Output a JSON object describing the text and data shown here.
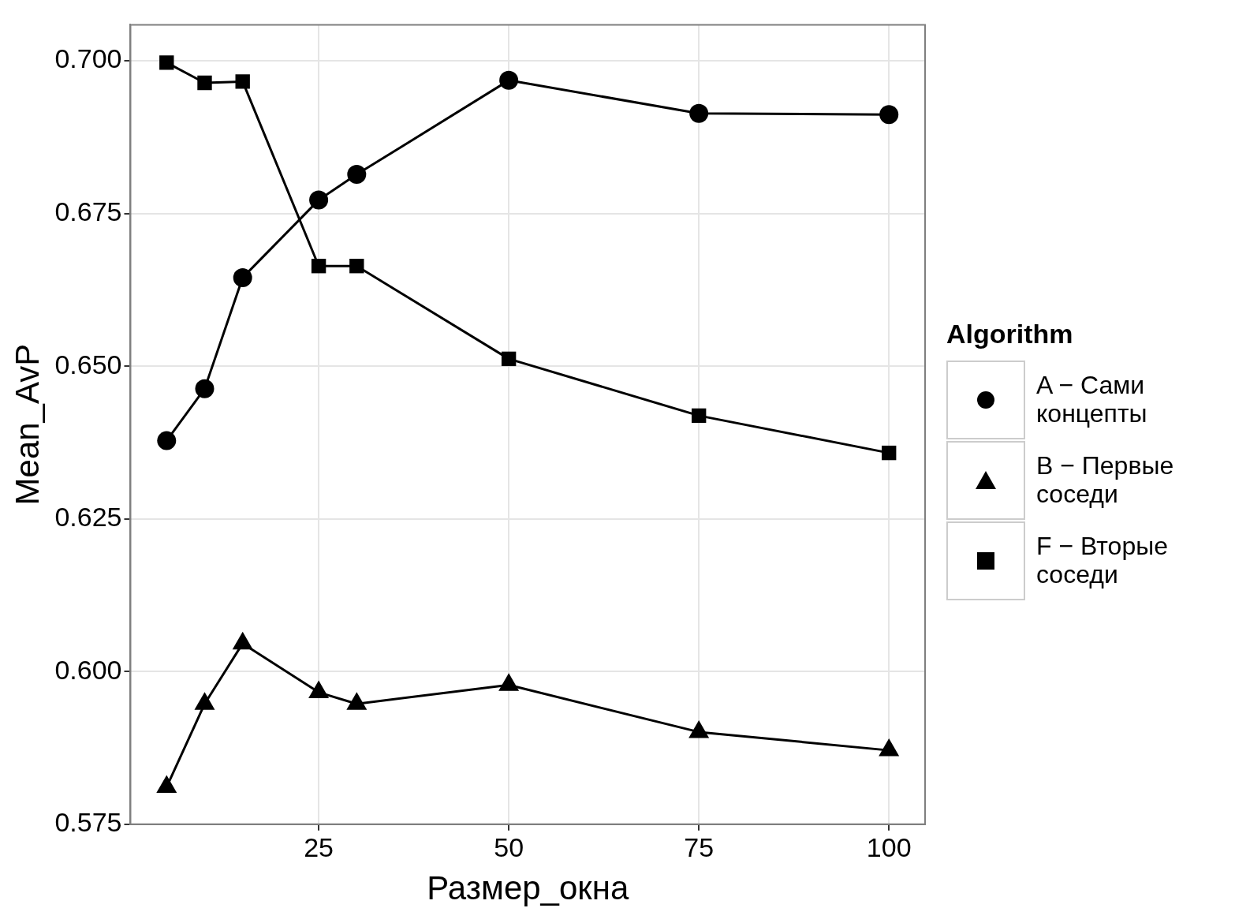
{
  "chart_data": {
    "type": "line",
    "xlabel": "Размер_окна",
    "ylabel": "Mean_AvP",
    "legend_title": "Algorithm",
    "legend": "right",
    "grid": true,
    "line_style": "solid",
    "x": [
      5,
      10,
      15,
      25,
      30,
      50,
      75,
      100
    ],
    "xlim": [
      0.25,
      104.75
    ],
    "xticks": [
      25,
      50,
      75,
      100
    ],
    "ylim": [
      0.575,
      0.7059
    ],
    "yticks": [
      {
        "value": 0.575,
        "label": "0.575"
      },
      {
        "value": 0.6,
        "label": "0.600"
      },
      {
        "value": 0.625,
        "label": "0.625"
      },
      {
        "value": 0.65,
        "label": "0.650"
      },
      {
        "value": 0.675,
        "label": "0.675"
      },
      {
        "value": 0.7,
        "label": "0.700"
      }
    ],
    "series": [
      {
        "name": "A − Сами концепты",
        "color": "#000000",
        "marker": "circle",
        "values": [
          0.6378,
          0.6463,
          0.6645,
          0.6772,
          0.6814,
          0.6968,
          0.6914,
          0.6912
        ]
      },
      {
        "name": "B − Первые соседи",
        "color": "#000000",
        "marker": "triangle",
        "values": [
          0.5811,
          0.5947,
          0.6046,
          0.5966,
          0.5947,
          0.5978,
          0.5901,
          0.5871
        ]
      },
      {
        "name": "F − Вторые соседи",
        "color": "#000000",
        "marker": "square",
        "values": [
          0.6997,
          0.6964,
          0.6966,
          0.6664,
          0.6664,
          0.6512,
          0.6419,
          0.6358
        ]
      }
    ]
  }
}
